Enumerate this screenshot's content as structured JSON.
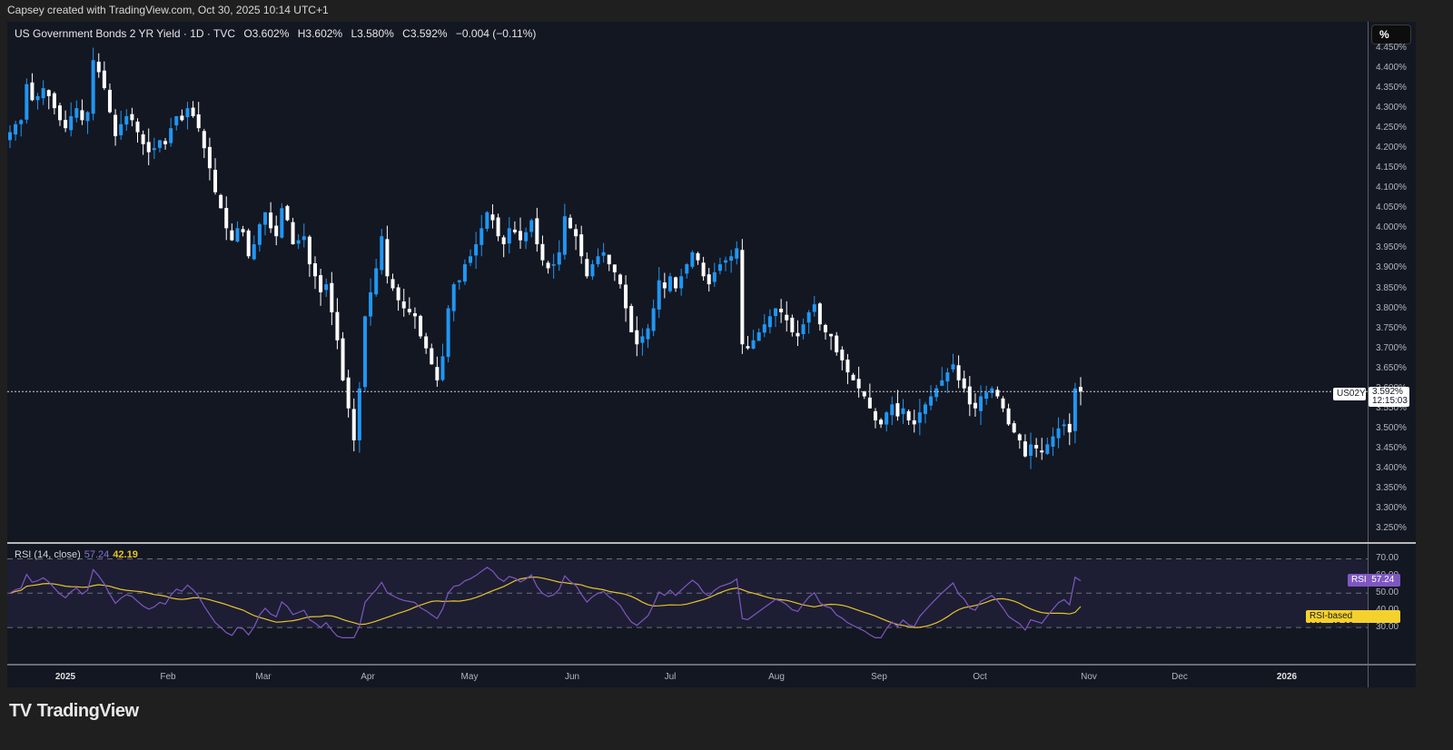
{
  "credit": "Capsey created with TradingView.com, Oct 30, 2025 10:14 UTC+1",
  "legend": {
    "symbol": "US Government Bonds 2 YR Yield · 1D · TVC",
    "open": "O3.602%",
    "high": "H3.602%",
    "low": "L3.580%",
    "close": "C3.592%",
    "change": "−0.004 (−0.11%)"
  },
  "scale_button": "%",
  "price_tag": {
    "ticker": "US02Y",
    "price": "3.592%",
    "countdown": "12:15:03"
  },
  "rsi": {
    "title": "RSI (14, close)",
    "rsi_value": "57.24",
    "ma_value": "42.19",
    "rsi_tag_label": "RSI",
    "ma_tag_label": "RSI-based MA"
  },
  "logo": "TradingView",
  "colors": {
    "up": "#2196f3",
    "down": "#ffffff",
    "rsi_line": "#7e57c2",
    "ma_line": "#e8c32c",
    "bg": "#131722"
  },
  "chart_data": [
    {
      "type": "candlestick",
      "title": "US Government Bonds 2 YR Yield · 1D · TVC",
      "ylabel": "%",
      "ylim": [
        3.25,
        4.45
      ],
      "y_ticks": [
        "4.450%",
        "4.400%",
        "4.350%",
        "4.300%",
        "4.250%",
        "4.200%",
        "4.150%",
        "4.100%",
        "4.050%",
        "4.000%",
        "3.950%",
        "3.900%",
        "3.850%",
        "3.800%",
        "3.750%",
        "3.700%",
        "3.650%",
        "3.600%",
        "3.550%",
        "3.500%",
        "3.450%",
        "3.400%",
        "3.350%",
        "3.300%",
        "3.250%"
      ],
      "x_ticks": [
        "2025",
        "Feb",
        "Mar",
        "Apr",
        "May",
        "Jun",
        "Jul",
        "Aug",
        "Sep",
        "Oct",
        "Nov",
        "Dec",
        "2026"
      ],
      "last": {
        "open": 3.602,
        "high": 3.602,
        "low": 3.58,
        "close": 3.592
      },
      "close_series": [
        4.24,
        4.26,
        4.27,
        4.36,
        4.32,
        4.33,
        4.35,
        4.33,
        4.3,
        4.27,
        4.25,
        4.28,
        4.3,
        4.27,
        4.29,
        4.42,
        4.39,
        4.35,
        4.29,
        4.23,
        4.26,
        4.28,
        4.27,
        4.24,
        4.21,
        4.19,
        4.2,
        4.22,
        4.21,
        4.25,
        4.28,
        4.27,
        4.3,
        4.28,
        4.25,
        4.2,
        4.15,
        4.09,
        4.05,
        4.0,
        3.97,
        4.0,
        3.99,
        3.93,
        3.96,
        4.01,
        4.04,
        4.0,
        3.98,
        4.05,
        4.02,
        3.96,
        3.97,
        3.98,
        3.91,
        3.88,
        3.84,
        3.86,
        3.79,
        3.72,
        3.62,
        3.55,
        3.47,
        3.6,
        3.78,
        3.84,
        3.9,
        3.98,
        3.88,
        3.85,
        3.82,
        3.8,
        3.79,
        3.78,
        3.73,
        3.7,
        3.66,
        3.62,
        3.68,
        3.8,
        3.86,
        3.87,
        3.91,
        3.93,
        3.96,
        4.0,
        4.04,
        4.02,
        3.98,
        3.96,
        4.0,
        3.99,
        3.97,
        3.99,
        4.02,
        3.96,
        3.92,
        3.9,
        3.91,
        3.94,
        4.03,
        4.0,
        3.98,
        3.93,
        3.88,
        3.91,
        3.93,
        3.94,
        3.91,
        3.89,
        3.86,
        3.8,
        3.74,
        3.71,
        3.73,
        3.75,
        3.8,
        3.87,
        3.85,
        3.88,
        3.85,
        3.88,
        3.91,
        3.94,
        3.92,
        3.88,
        3.86,
        3.89,
        3.91,
        3.92,
        3.93,
        3.95,
        3.71,
        3.7,
        3.72,
        3.74,
        3.76,
        3.78,
        3.8,
        3.79,
        3.77,
        3.74,
        3.73,
        3.76,
        3.79,
        3.81,
        3.76,
        3.74,
        3.73,
        3.69,
        3.67,
        3.64,
        3.62,
        3.6,
        3.58,
        3.55,
        3.52,
        3.51,
        3.54,
        3.56,
        3.53,
        3.55,
        3.52,
        3.51,
        3.54,
        3.56,
        3.58,
        3.6,
        3.62,
        3.64,
        3.66,
        3.62,
        3.6,
        3.56,
        3.55,
        3.58,
        3.59,
        3.6,
        3.58,
        3.55,
        3.51,
        3.49,
        3.47,
        3.43,
        3.46,
        3.45,
        3.44,
        3.46,
        3.48,
        3.5,
        3.51,
        3.49,
        3.6,
        3.592
      ]
    },
    {
      "type": "line",
      "title": "RSI (14, close)",
      "ylim": [
        20,
        75
      ],
      "y_ticks": [
        "70.00",
        "60.00",
        "50.00",
        "40.00",
        "30.00"
      ],
      "series": [
        {
          "name": "RSI",
          "last": 57.24
        },
        {
          "name": "RSI-based MA",
          "last": 42.19
        }
      ]
    }
  ]
}
